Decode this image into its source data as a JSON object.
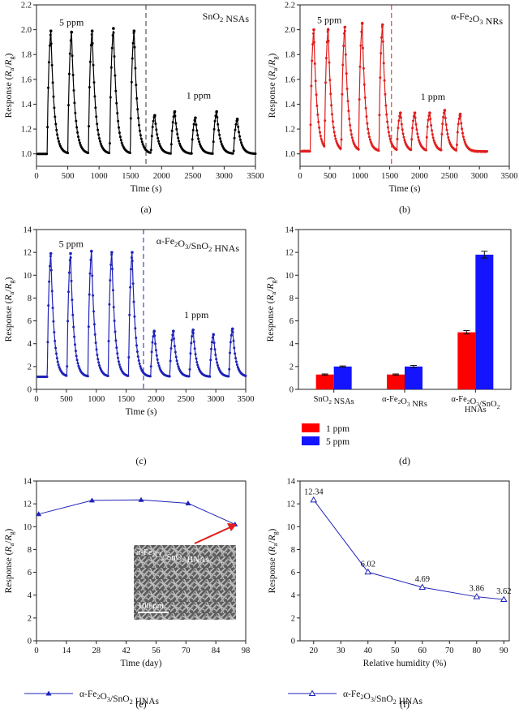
{
  "figure": {
    "panels": [
      {
        "caption": "(a)",
        "xlabel": "Time (s)",
        "ylabel": "Response (Ra/Rg)",
        "label": "SnO2 NSAs",
        "ann_5": "5 ppm",
        "ann_1": "1 ppm",
        "color": "#000000",
        "dash_color": "#333333"
      },
      {
        "caption": "(b)",
        "xlabel": "Time (s)",
        "ylabel": "Response (Ra/Rg)",
        "label": "α-Fe2O3 NRs",
        "ann_5": "5 ppm",
        "ann_1": "1 ppm",
        "color": "#e01e1e",
        "dash_color": "#e01e1e"
      },
      {
        "caption": "(c)",
        "xlabel": "Time (s)",
        "ylabel": "Response (Ra/Rg)",
        "label": "α-Fe2O3/SnO2 HNAs",
        "ann_5": "5 ppm",
        "ann_1": "1 ppm",
        "color": "#1f23b8",
        "dash_color": "#1f23b8"
      },
      {
        "caption": "(d)",
        "ylabel": "Response (Ra/Rg)"
      },
      {
        "caption": "(e)",
        "xlabel": "Time (day)",
        "ylabel": "Response (Ra/Rg)",
        "legend": "α-Fe2O3/SnO2 HNAs",
        "inset_label": "α-Fe2O3/SnO2 HNAs",
        "scale_bar": "100 nm",
        "color": "#1f23b8"
      },
      {
        "caption": "(f)",
        "xlabel": "Relative humidity (%)",
        "ylabel": "Response (Ra/Rg)",
        "legend": "α-Fe2O3/SnO2 HNAs",
        "color": "#1f23b8"
      }
    ]
  },
  "chart_data": [
    {
      "type": "line",
      "panel": "a",
      "xlim": [
        0,
        3500
      ],
      "ylim": [
        0.9,
        2.2
      ],
      "xticks": [
        0,
        500,
        1000,
        1500,
        2000,
        2500,
        3000,
        3500
      ],
      "yticks": [
        1.0,
        1.2,
        1.4,
        1.6,
        1.8,
        2.0,
        2.2
      ],
      "baseline": 1.0,
      "switch_time": 1750,
      "peaks": [
        {
          "t": 230,
          "v": 1.99
        },
        {
          "t": 560,
          "v": 1.98
        },
        {
          "t": 890,
          "v": 1.99
        },
        {
          "t": 1230,
          "v": 2.01
        },
        {
          "t": 1560,
          "v": 1.99
        },
        {
          "t": 1890,
          "v": 1.31
        },
        {
          "t": 2210,
          "v": 1.34
        },
        {
          "t": 2540,
          "v": 1.29
        },
        {
          "t": 2880,
          "v": 1.34
        },
        {
          "t": 3210,
          "v": 1.28
        }
      ]
    },
    {
      "type": "line",
      "panel": "b",
      "xlim": [
        0,
        3500
      ],
      "ylim": [
        0.9,
        2.2
      ],
      "xticks": [
        0,
        500,
        1000,
        1500,
        2000,
        2500,
        3000,
        3500
      ],
      "yticks": [
        1.0,
        1.2,
        1.4,
        1.6,
        1.8,
        2.0,
        2.2
      ],
      "baseline": 1.02,
      "switch_time": 1530,
      "peaks": [
        {
          "t": 230,
          "v": 2.0
        },
        {
          "t": 470,
          "v": 2.0
        },
        {
          "t": 750,
          "v": 2.02
        },
        {
          "t": 1040,
          "v": 2.05
        },
        {
          "t": 1380,
          "v": 2.04
        },
        {
          "t": 1680,
          "v": 1.33
        },
        {
          "t": 1920,
          "v": 1.33
        },
        {
          "t": 2170,
          "v": 1.33
        },
        {
          "t": 2420,
          "v": 1.35
        },
        {
          "t": 2680,
          "v": 1.32
        }
      ]
    },
    {
      "type": "line",
      "panel": "c",
      "xlim": [
        0,
        3500
      ],
      "ylim": [
        0,
        14
      ],
      "xticks": [
        0,
        500,
        1000,
        1500,
        2000,
        2500,
        3000,
        3500
      ],
      "yticks": [
        0,
        2,
        4,
        6,
        8,
        10,
        12,
        14
      ],
      "baseline": 1.1,
      "switch_time": 1790,
      "peaks": [
        {
          "t": 240,
          "v": 11.9
        },
        {
          "t": 570,
          "v": 11.9
        },
        {
          "t": 920,
          "v": 12.1
        },
        {
          "t": 1260,
          "v": 12.0
        },
        {
          "t": 1600,
          "v": 12.0
        },
        {
          "t": 1970,
          "v": 5.1
        },
        {
          "t": 2290,
          "v": 5.1
        },
        {
          "t": 2620,
          "v": 5.2
        },
        {
          "t": 2960,
          "v": 4.8
        },
        {
          "t": 3280,
          "v": 5.3
        }
      ]
    },
    {
      "type": "bar",
      "panel": "d",
      "ylim": [
        0,
        14
      ],
      "yticks": [
        0,
        2,
        4,
        6,
        8,
        10,
        12,
        14
      ],
      "categories": [
        "SnO2 NSAs",
        "α-Fe2O3 NRs",
        "α-Fe2O3/SnO2 HNAs"
      ],
      "series": [
        {
          "name": "1 ppm",
          "color": "#ff0000",
          "values": [
            1.3,
            1.3,
            5.0
          ],
          "errors": [
            0.05,
            0.05,
            0.15
          ]
        },
        {
          "name": "5 ppm",
          "color": "#1414ff",
          "values": [
            2.0,
            2.0,
            11.8
          ],
          "errors": [
            0.05,
            0.1,
            0.3
          ]
        }
      ]
    },
    {
      "type": "line",
      "panel": "e",
      "xlim": [
        0,
        98
      ],
      "ylim": [
        0,
        14
      ],
      "xticks": [
        0,
        14,
        28,
        42,
        56,
        70,
        84,
        98
      ],
      "yticks": [
        0,
        2,
        4,
        6,
        8,
        10,
        12,
        14
      ],
      "x": [
        1,
        26,
        49,
        71,
        93
      ],
      "y": [
        11.1,
        12.3,
        12.35,
        12.05,
        10.2
      ]
    },
    {
      "type": "line",
      "panel": "f",
      "xlim": [
        15,
        92
      ],
      "ylim": [
        0,
        14
      ],
      "xticks": [
        20,
        30,
        40,
        50,
        60,
        70,
        80,
        90
      ],
      "xtick_labels": [
        "20",
        "30",
        "40",
        "50",
        "60",
        "70",
        "80",
        "90"
      ],
      "yticks": [
        0,
        2,
        4,
        6,
        8,
        10,
        12,
        14
      ],
      "x": [
        20,
        40,
        60,
        80,
        90
      ],
      "y": [
        12.34,
        6.02,
        4.69,
        3.86,
        3.62
      ],
      "labels": [
        "12.34",
        "6.02",
        "4.69",
        "3.86",
        "3.62"
      ]
    }
  ]
}
